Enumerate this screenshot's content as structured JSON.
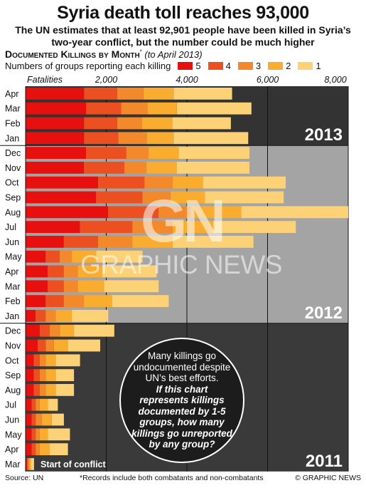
{
  "header": {
    "title": "Syria death toll reaches 93,000",
    "subtitle_line1": "The UN estimates that at least 92,901 people have been killed in Syria’s",
    "subtitle_line2": "two-year conflict, but the number could be much higher",
    "chart_heading": "Documented Killings by Month",
    "chart_heading_mark": "*",
    "chart_heading_note": "(to April 2013)"
  },
  "legend": {
    "title": "Numbers of groups reporting each killing",
    "items": [
      {
        "label": "5",
        "color": "#e8100f"
      },
      {
        "label": "4",
        "color": "#ec5020"
      },
      {
        "label": "3",
        "color": "#f3892a"
      },
      {
        "label": "2",
        "color": "#f9ac2d"
      },
      {
        "label": "1",
        "color": "#fdd277"
      }
    ]
  },
  "chart_data": {
    "type": "bar",
    "orientation": "horizontal",
    "stacked": true,
    "axis_label": "Fatalities",
    "xlim": [
      0,
      8000
    ],
    "x_ticks": [
      "2,000",
      "4,000",
      "6,000",
      "8,000"
    ],
    "x_tick_values": [
      2000,
      4000,
      6000,
      8000
    ],
    "series_names": [
      "5",
      "4",
      "3",
      "2",
      "1"
    ],
    "periods": [
      {
        "year": "2013",
        "months": [
          {
            "label": "Apr",
            "values": [
              1450,
              820,
              650,
              750,
              1450
            ]
          },
          {
            "label": "Mar",
            "values": [
              1500,
              870,
              650,
              730,
              1850
            ]
          },
          {
            "label": "Feb",
            "values": [
              1450,
              820,
              620,
              750,
              1450
            ]
          },
          {
            "label": "Jan",
            "values": [
              1450,
              850,
              700,
              670,
              1850
            ]
          }
        ]
      },
      {
        "year": "2012",
        "months": [
          {
            "label": "Dec",
            "values": [
              1500,
              1000,
              550,
              750,
              1750
            ]
          },
          {
            "label": "Nov",
            "values": [
              1450,
              1000,
              550,
              750,
              1800
            ]
          },
          {
            "label": "Oct",
            "values": [
              1800,
              1150,
              700,
              750,
              2050
            ]
          },
          {
            "label": "Sep",
            "values": [
              1750,
              1150,
              700,
              850,
              1950
            ]
          },
          {
            "label": "Aug",
            "values": [
              2050,
              1250,
              800,
              1250,
              2650
            ]
          },
          {
            "label": "Jul",
            "values": [
              1350,
              1300,
              1000,
              1000,
              2050
            ]
          },
          {
            "label": "Jun",
            "values": [
              950,
              850,
              850,
              1000,
              2000
            ]
          },
          {
            "label": "May",
            "values": [
              500,
              350,
              300,
              600,
              1150
            ]
          },
          {
            "label": "Apr",
            "values": [
              550,
              400,
              350,
              600,
              1350
            ]
          },
          {
            "label": "Mar",
            "values": [
              550,
              400,
              350,
              650,
              1350
            ]
          },
          {
            "label": "Feb",
            "values": [
              500,
              450,
              500,
              700,
              1400
            ]
          },
          {
            "label": "Jan",
            "values": [
              250,
              250,
              250,
              400,
              900
            ]
          }
        ]
      },
      {
        "year": "2011",
        "months": [
          {
            "label": "Dec",
            "values": [
              350,
              250,
              250,
              350,
              1000
            ]
          },
          {
            "label": "Nov",
            "values": [
              300,
              200,
              200,
              350,
              800
            ]
          },
          {
            "label": "Oct",
            "values": [
              200,
              150,
              150,
              250,
              600
            ]
          },
          {
            "label": "Sep",
            "values": [
              200,
              150,
              150,
              250,
              450
            ]
          },
          {
            "label": "Aug",
            "values": [
              200,
              150,
              150,
              250,
              450
            ]
          },
          {
            "label": "Jul",
            "values": [
              150,
              100,
              100,
              200,
              250
            ]
          },
          {
            "label": "Jun",
            "values": [
              150,
              100,
              150,
              250,
              300
            ]
          },
          {
            "label": "May",
            "values": [
              150,
              100,
              100,
              200,
              550
            ]
          },
          {
            "label": "Apr",
            "values": [
              150,
              100,
              100,
              250,
              450
            ]
          },
          {
            "label": "Mar",
            "values": [
              30,
              30,
              30,
              40,
              80
            ]
          }
        ]
      }
    ],
    "annotations": [
      "Start of conflict"
    ]
  },
  "callout": {
    "line1": "Many killings go undocumented despite UN’s best efforts.",
    "line2": "If this chart represents killings documented by 1-5 groups, how many killings go unreported by any group?"
  },
  "watermark": {
    "logo": "GN",
    "text": "GRAPHIC NEWS"
  },
  "footer": {
    "source": "Source: UN",
    "note": "*Records include both combatants and non-combatants",
    "credit": "© GRAPHIC NEWS"
  },
  "colors": {
    "bg_2013": "#333333",
    "bg_2012": "#a4a4a4",
    "bg_2011": "#3a3a3a",
    "grid": "#111111"
  }
}
